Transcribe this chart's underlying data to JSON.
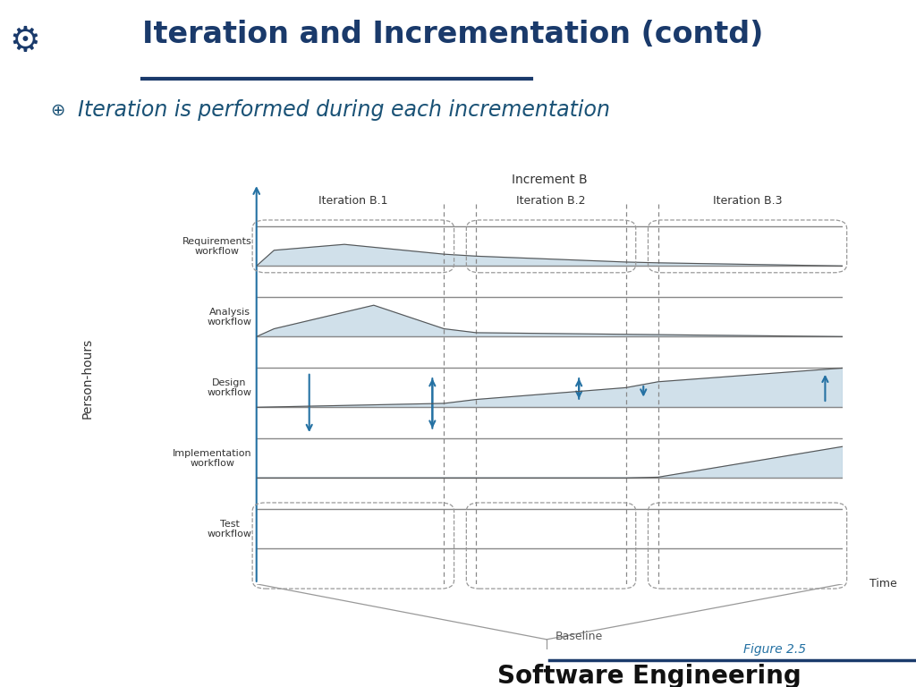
{
  "title": "Iteration and Incrementation (contd)",
  "subtitle": "Iteration is performed during each incrementation",
  "figure_label": "Figure 2.5",
  "bottom_label": "Software Engineering",
  "increment_label": "Increment B",
  "iteration_labels": [
    "Iteration B.1",
    "Iteration B.2",
    "Iteration B.3"
  ],
  "time_label": "Time",
  "baseline_label": "Baseline",
  "person_hours_label": "Person-hours",
  "workflow_labels": [
    "Requirements\nworkflow",
    "Analysis\nworkflow",
    "Design\nworkflow",
    "Implementation\nworkflow",
    "Test\nworkflow"
  ],
  "bg_color": "#ffffff",
  "title_color": "#1a3a6b",
  "subtitle_color": "#1a5276",
  "fill_color": "#b8d0e0",
  "fill_alpha": 0.65,
  "gray_line": "#888888",
  "dashed_color": "#888888",
  "arrow_color": "#2471a3",
  "axis_color": "#2471a3",
  "figure_label_color": "#2471a3",
  "divider_color": "#1a3a6b",
  "text_color": "#333333",
  "band_tops": [
    9.1,
    7.3,
    5.5,
    3.7,
    1.9
  ],
  "band_bottoms": [
    8.1,
    6.3,
    4.5,
    2.7,
    0.9
  ],
  "iter_sep": [
    3.2,
    3.75,
    6.3,
    6.85
  ],
  "xlim": [
    0,
    10
  ],
  "ylim": [
    0,
    10.5
  ]
}
